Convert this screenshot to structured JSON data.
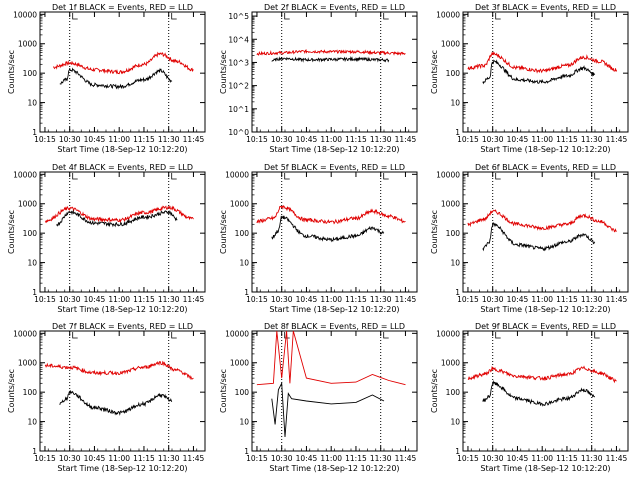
{
  "chart_data": [
    {
      "type": "line",
      "title": "Det 1f BLACK = Events, RED = LLD",
      "ylabel": "Counts/sec",
      "xlabel": "Start Time (18-Sep-12 10:12:20)",
      "x_ticks": [
        "10:15",
        "10:30",
        "10:45",
        "11:00",
        "11:15",
        "11:30",
        "11:45"
      ],
      "y_ticks": [
        "1",
        "10",
        "100",
        "1000",
        "10000"
      ],
      "ylim": [
        1,
        12000
      ],
      "log_y": true,
      "markers": [
        "10:30",
        "11:30"
      ],
      "series": [
        {
          "name": "RED = LLD",
          "x": [
            "10:20",
            "10:30",
            "10:45",
            "11:00",
            "11:15",
            "11:25",
            "11:35",
            "11:45"
          ],
          "values": [
            160,
            220,
            130,
            110,
            200,
            450,
            250,
            130
          ]
        },
        {
          "name": "BLACK = Events",
          "x": [
            "10:24",
            "10:28",
            "10:30",
            "10:45",
            "11:00",
            "11:15",
            "11:25",
            "11:32"
          ],
          "values": [
            45,
            60,
            130,
            40,
            35,
            60,
            120,
            55
          ]
        }
      ]
    },
    {
      "type": "line",
      "title": "Det 2f BLACK = Events, RED = LLD",
      "ylabel": "Counts/sec",
      "xlabel": "Start Time (18-Sep-12 10:12:20)",
      "x_ticks": [
        "10:15",
        "10:30",
        "10:45",
        "11:00",
        "11:15",
        "11:30",
        "11:45"
      ],
      "y_ticks": [
        "10^0",
        "10^1",
        "10^2",
        "10^3",
        "10^4",
        "10^5"
      ],
      "ylim": [
        1,
        150000
      ],
      "log_y": true,
      "markers": [
        "10:30",
        "11:30"
      ],
      "series": [
        {
          "name": "RED = LLD",
          "x": [
            "10:15",
            "10:30",
            "10:45",
            "11:00",
            "11:15",
            "11:30",
            "11:45"
          ],
          "values": [
            2400,
            2600,
            3000,
            2900,
            2900,
            2600,
            2400
          ]
        },
        {
          "name": "BLACK = Events",
          "x": [
            "10:24",
            "10:30",
            "10:45",
            "11:00",
            "11:15",
            "11:30",
            "11:35"
          ],
          "values": [
            1200,
            1500,
            1300,
            1350,
            1400,
            1300,
            1250
          ]
        }
      ]
    },
    {
      "type": "line",
      "title": "Det 3f BLACK = Events, RED = LLD",
      "ylabel": "Counts/sec",
      "xlabel": "Start Time (18-Sep-12 10:12:20)",
      "x_ticks": [
        "10:15",
        "10:30",
        "10:45",
        "11:00",
        "11:15",
        "11:30",
        "11:45"
      ],
      "y_ticks": [
        "1",
        "10",
        "100",
        "1000",
        "10000"
      ],
      "ylim": [
        1,
        12000
      ],
      "log_y": true,
      "markers": [
        "10:30",
        "11:30"
      ],
      "series": [
        {
          "name": "RED = LLD",
          "x": [
            "10:15",
            "10:25",
            "10:30",
            "10:45",
            "11:00",
            "11:15",
            "11:25",
            "11:35",
            "11:45"
          ],
          "values": [
            150,
            180,
            450,
            150,
            120,
            180,
            350,
            250,
            130
          ]
        },
        {
          "name": "BLACK = Events",
          "x": [
            "10:24",
            "10:28",
            "10:30",
            "10:45",
            "11:00",
            "11:15",
            "11:25",
            "11:32"
          ],
          "values": [
            50,
            70,
            250,
            60,
            50,
            80,
            150,
            90
          ]
        }
      ]
    },
    {
      "type": "line",
      "title": "Det 4f BLACK = Events, RED = LLD",
      "ylabel": "Counts/sec",
      "xlabel": "Start Time (18-Sep-12 10:12:20)",
      "x_ticks": [
        "10:15",
        "10:30",
        "10:45",
        "11:00",
        "11:15",
        "11:30",
        "11:45"
      ],
      "y_ticks": [
        "1",
        "10",
        "100",
        "1000",
        "10000"
      ],
      "ylim": [
        1,
        12000
      ],
      "log_y": true,
      "markers": [
        "10:30",
        "11:30"
      ],
      "series": [
        {
          "name": "RED = LLD",
          "x": [
            "10:15",
            "10:30",
            "10:45",
            "11:00",
            "11:15",
            "11:30",
            "11:45"
          ],
          "values": [
            260,
            700,
            300,
            280,
            500,
            750,
            300
          ]
        },
        {
          "name": "BLACK = Events",
          "x": [
            "10:22",
            "10:30",
            "10:45",
            "11:00",
            "11:15",
            "11:30",
            "11:35"
          ],
          "values": [
            200,
            520,
            220,
            200,
            350,
            520,
            300
          ]
        }
      ]
    },
    {
      "type": "line",
      "title": "Det 5f BLACK = Events, RED = LLD",
      "ylabel": "Counts/sec",
      "xlabel": "Start Time (18-Sep-12 10:12:20)",
      "x_ticks": [
        "10:15",
        "10:30",
        "10:45",
        "11:00",
        "11:15",
        "11:30",
        "11:45"
      ],
      "y_ticks": [
        "1",
        "10",
        "100",
        "1000",
        "10000"
      ],
      "ylim": [
        1,
        12000
      ],
      "log_y": true,
      "markers": [
        "10:30",
        "11:30"
      ],
      "series": [
        {
          "name": "RED = LLD",
          "x": [
            "10:15",
            "10:25",
            "10:30",
            "10:45",
            "11:00",
            "11:15",
            "11:25",
            "11:35",
            "11:45"
          ],
          "values": [
            250,
            320,
            800,
            280,
            240,
            320,
            550,
            380,
            250
          ]
        },
        {
          "name": "BLACK = Events",
          "x": [
            "10:24",
            "10:28",
            "10:30",
            "10:45",
            "11:00",
            "11:15",
            "11:25",
            "11:32"
          ],
          "values": [
            70,
            120,
            350,
            80,
            60,
            80,
            150,
            100
          ]
        }
      ]
    },
    {
      "type": "line",
      "title": "Det 6f BLACK = Events, RED = LLD",
      "ylabel": "Counts/sec",
      "xlabel": "Start Time (18-Sep-12 10:12:20)",
      "x_ticks": [
        "10:15",
        "10:30",
        "10:45",
        "11:00",
        "11:15",
        "11:30",
        "11:45"
      ],
      "y_ticks": [
        "1",
        "10",
        "100",
        "1000",
        "10000"
      ],
      "ylim": [
        1,
        12000
      ],
      "log_y": true,
      "markers": [
        "10:30",
        "11:30"
      ],
      "series": [
        {
          "name": "RED = LLD",
          "x": [
            "10:15",
            "10:25",
            "10:30",
            "10:45",
            "11:00",
            "11:15",
            "11:25",
            "11:35",
            "11:45"
          ],
          "values": [
            200,
            300,
            550,
            200,
            150,
            200,
            400,
            250,
            120
          ]
        },
        {
          "name": "BLACK = Events",
          "x": [
            "10:24",
            "10:28",
            "10:30",
            "10:45",
            "11:00",
            "11:15",
            "11:25",
            "11:32"
          ],
          "values": [
            30,
            50,
            200,
            40,
            30,
            50,
            90,
            50
          ]
        }
      ]
    },
    {
      "type": "line",
      "title": "Det 7f BLACK = Events, RED = LLD",
      "ylabel": "Counts/sec",
      "xlabel": "Start Time (18-Sep-12 10:12:20)",
      "x_ticks": [
        "10:15",
        "10:30",
        "10:45",
        "11:00",
        "11:15",
        "11:30",
        "11:45"
      ],
      "y_ticks": [
        "1",
        "10",
        "100",
        "1000",
        "10000"
      ],
      "ylim": [
        1,
        12000
      ],
      "log_y": true,
      "markers": [
        "10:30",
        "11:30"
      ],
      "series": [
        {
          "name": "RED = LLD",
          "x": [
            "10:15",
            "10:30",
            "10:45",
            "11:00",
            "11:15",
            "11:25",
            "11:35",
            "11:45"
          ],
          "values": [
            800,
            700,
            450,
            450,
            700,
            1000,
            550,
            300
          ]
        },
        {
          "name": "BLACK = Events",
          "x": [
            "10:24",
            "10:28",
            "10:30",
            "10:45",
            "11:00",
            "11:15",
            "11:25",
            "11:32"
          ],
          "values": [
            40,
            60,
            100,
            30,
            20,
            40,
            80,
            50
          ]
        }
      ]
    },
    {
      "type": "line",
      "title": "Det 8f BLACK = Events, RED = LLD",
      "ylabel": "Counts/sec",
      "xlabel": "Start Time (18-Sep-12 10:12:20)",
      "x_ticks": [
        "10:15",
        "10:30",
        "10:45",
        "11:00",
        "11:15",
        "11:30",
        "11:45"
      ],
      "y_ticks": [
        "1",
        "10",
        "100",
        "1000",
        "10000"
      ],
      "ylim": [
        1,
        12000
      ],
      "log_y": true,
      "markers": [
        "10:30",
        "11:30"
      ],
      "series": [
        {
          "name": "RED = LLD",
          "x": [
            "10:15",
            "10:25",
            "10:27",
            "10:30",
            "10:33",
            "10:35",
            "10:37",
            "10:45",
            "11:00",
            "11:15",
            "11:25",
            "11:35",
            "11:45"
          ],
          "values": [
            180,
            200,
            12000,
            300,
            12000,
            200,
            12000,
            300,
            200,
            220,
            400,
            250,
            180
          ]
        },
        {
          "name": "BLACK = Events",
          "x": [
            "10:24",
            "10:26",
            "10:28",
            "10:30",
            "10:32",
            "10:34",
            "10:36",
            "10:45",
            "11:00",
            "11:15",
            "11:25",
            "11:32"
          ],
          "values": [
            60,
            8,
            120,
            200,
            3,
            90,
            60,
            50,
            40,
            45,
            80,
            50
          ]
        }
      ]
    },
    {
      "type": "line",
      "title": "Det 9f BLACK = Events, RED = LLD",
      "ylabel": "Counts/sec",
      "xlabel": "Start Time (18-Sep-12 10:12:20)",
      "x_ticks": [
        "10:15",
        "10:30",
        "10:45",
        "11:00",
        "11:15",
        "11:30",
        "11:45"
      ],
      "y_ticks": [
        "1",
        "10",
        "100",
        "1000",
        "10000"
      ],
      "ylim": [
        1,
        12000
      ],
      "log_y": true,
      "markers": [
        "10:30",
        "11:30"
      ],
      "series": [
        {
          "name": "RED = LLD",
          "x": [
            "10:15",
            "10:25",
            "10:30",
            "10:45",
            "11:00",
            "11:15",
            "11:25",
            "11:35",
            "11:45"
          ],
          "values": [
            300,
            400,
            600,
            350,
            300,
            400,
            650,
            450,
            250
          ]
        },
        {
          "name": "BLACK = Events",
          "x": [
            "10:24",
            "10:28",
            "10:30",
            "10:45",
            "11:00",
            "11:15",
            "11:25",
            "11:32"
          ],
          "values": [
            50,
            70,
            200,
            60,
            40,
            60,
            120,
            70
          ]
        }
      ]
    }
  ]
}
